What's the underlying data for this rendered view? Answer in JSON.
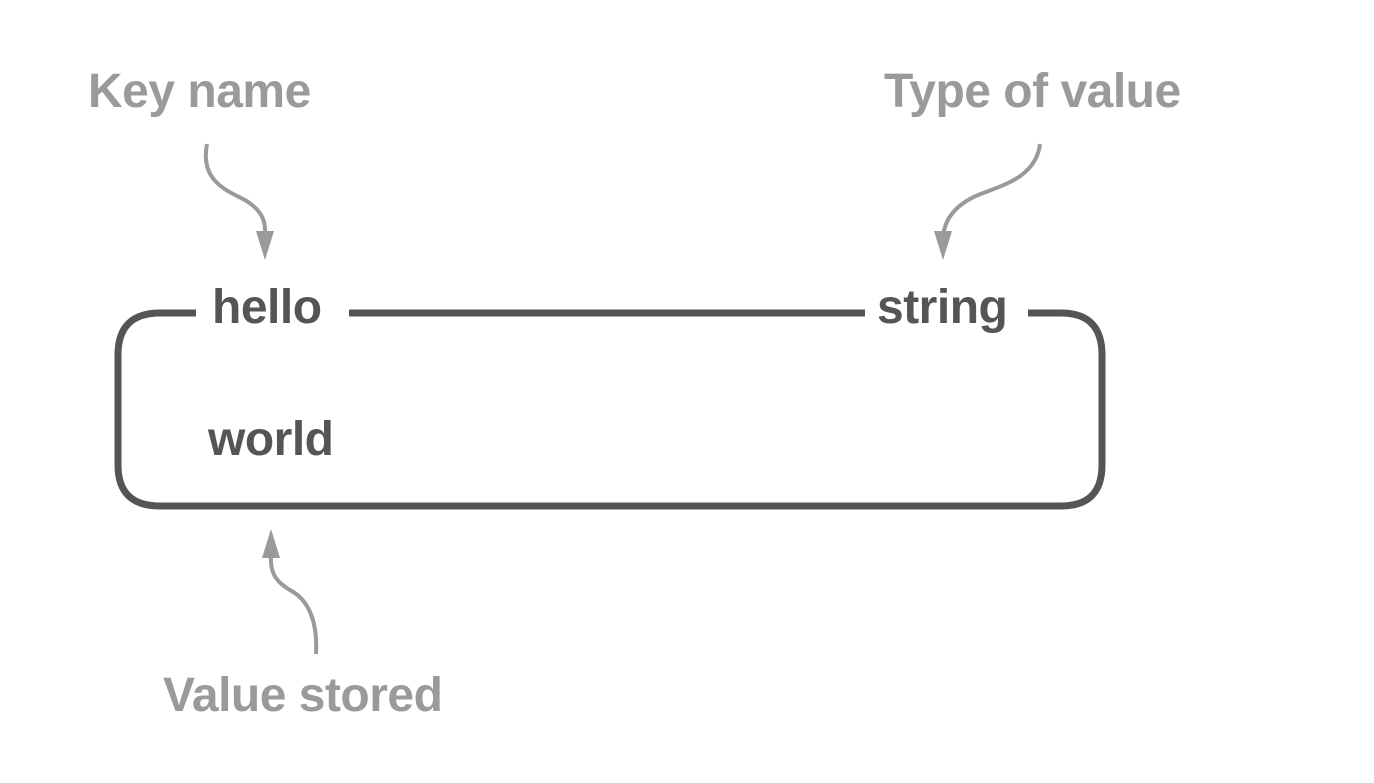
{
  "annotations": {
    "key_name": "Key name",
    "type_of_value": "Type of value",
    "value_stored": "Value stored"
  },
  "record": {
    "key": "hello",
    "type": "string",
    "value": "world"
  },
  "colors": {
    "annotation_text": "#9a9a9a",
    "arrow": "#9a9a9a",
    "box_stroke": "#555555",
    "record_text": "#555555",
    "background": "#ffffff"
  }
}
